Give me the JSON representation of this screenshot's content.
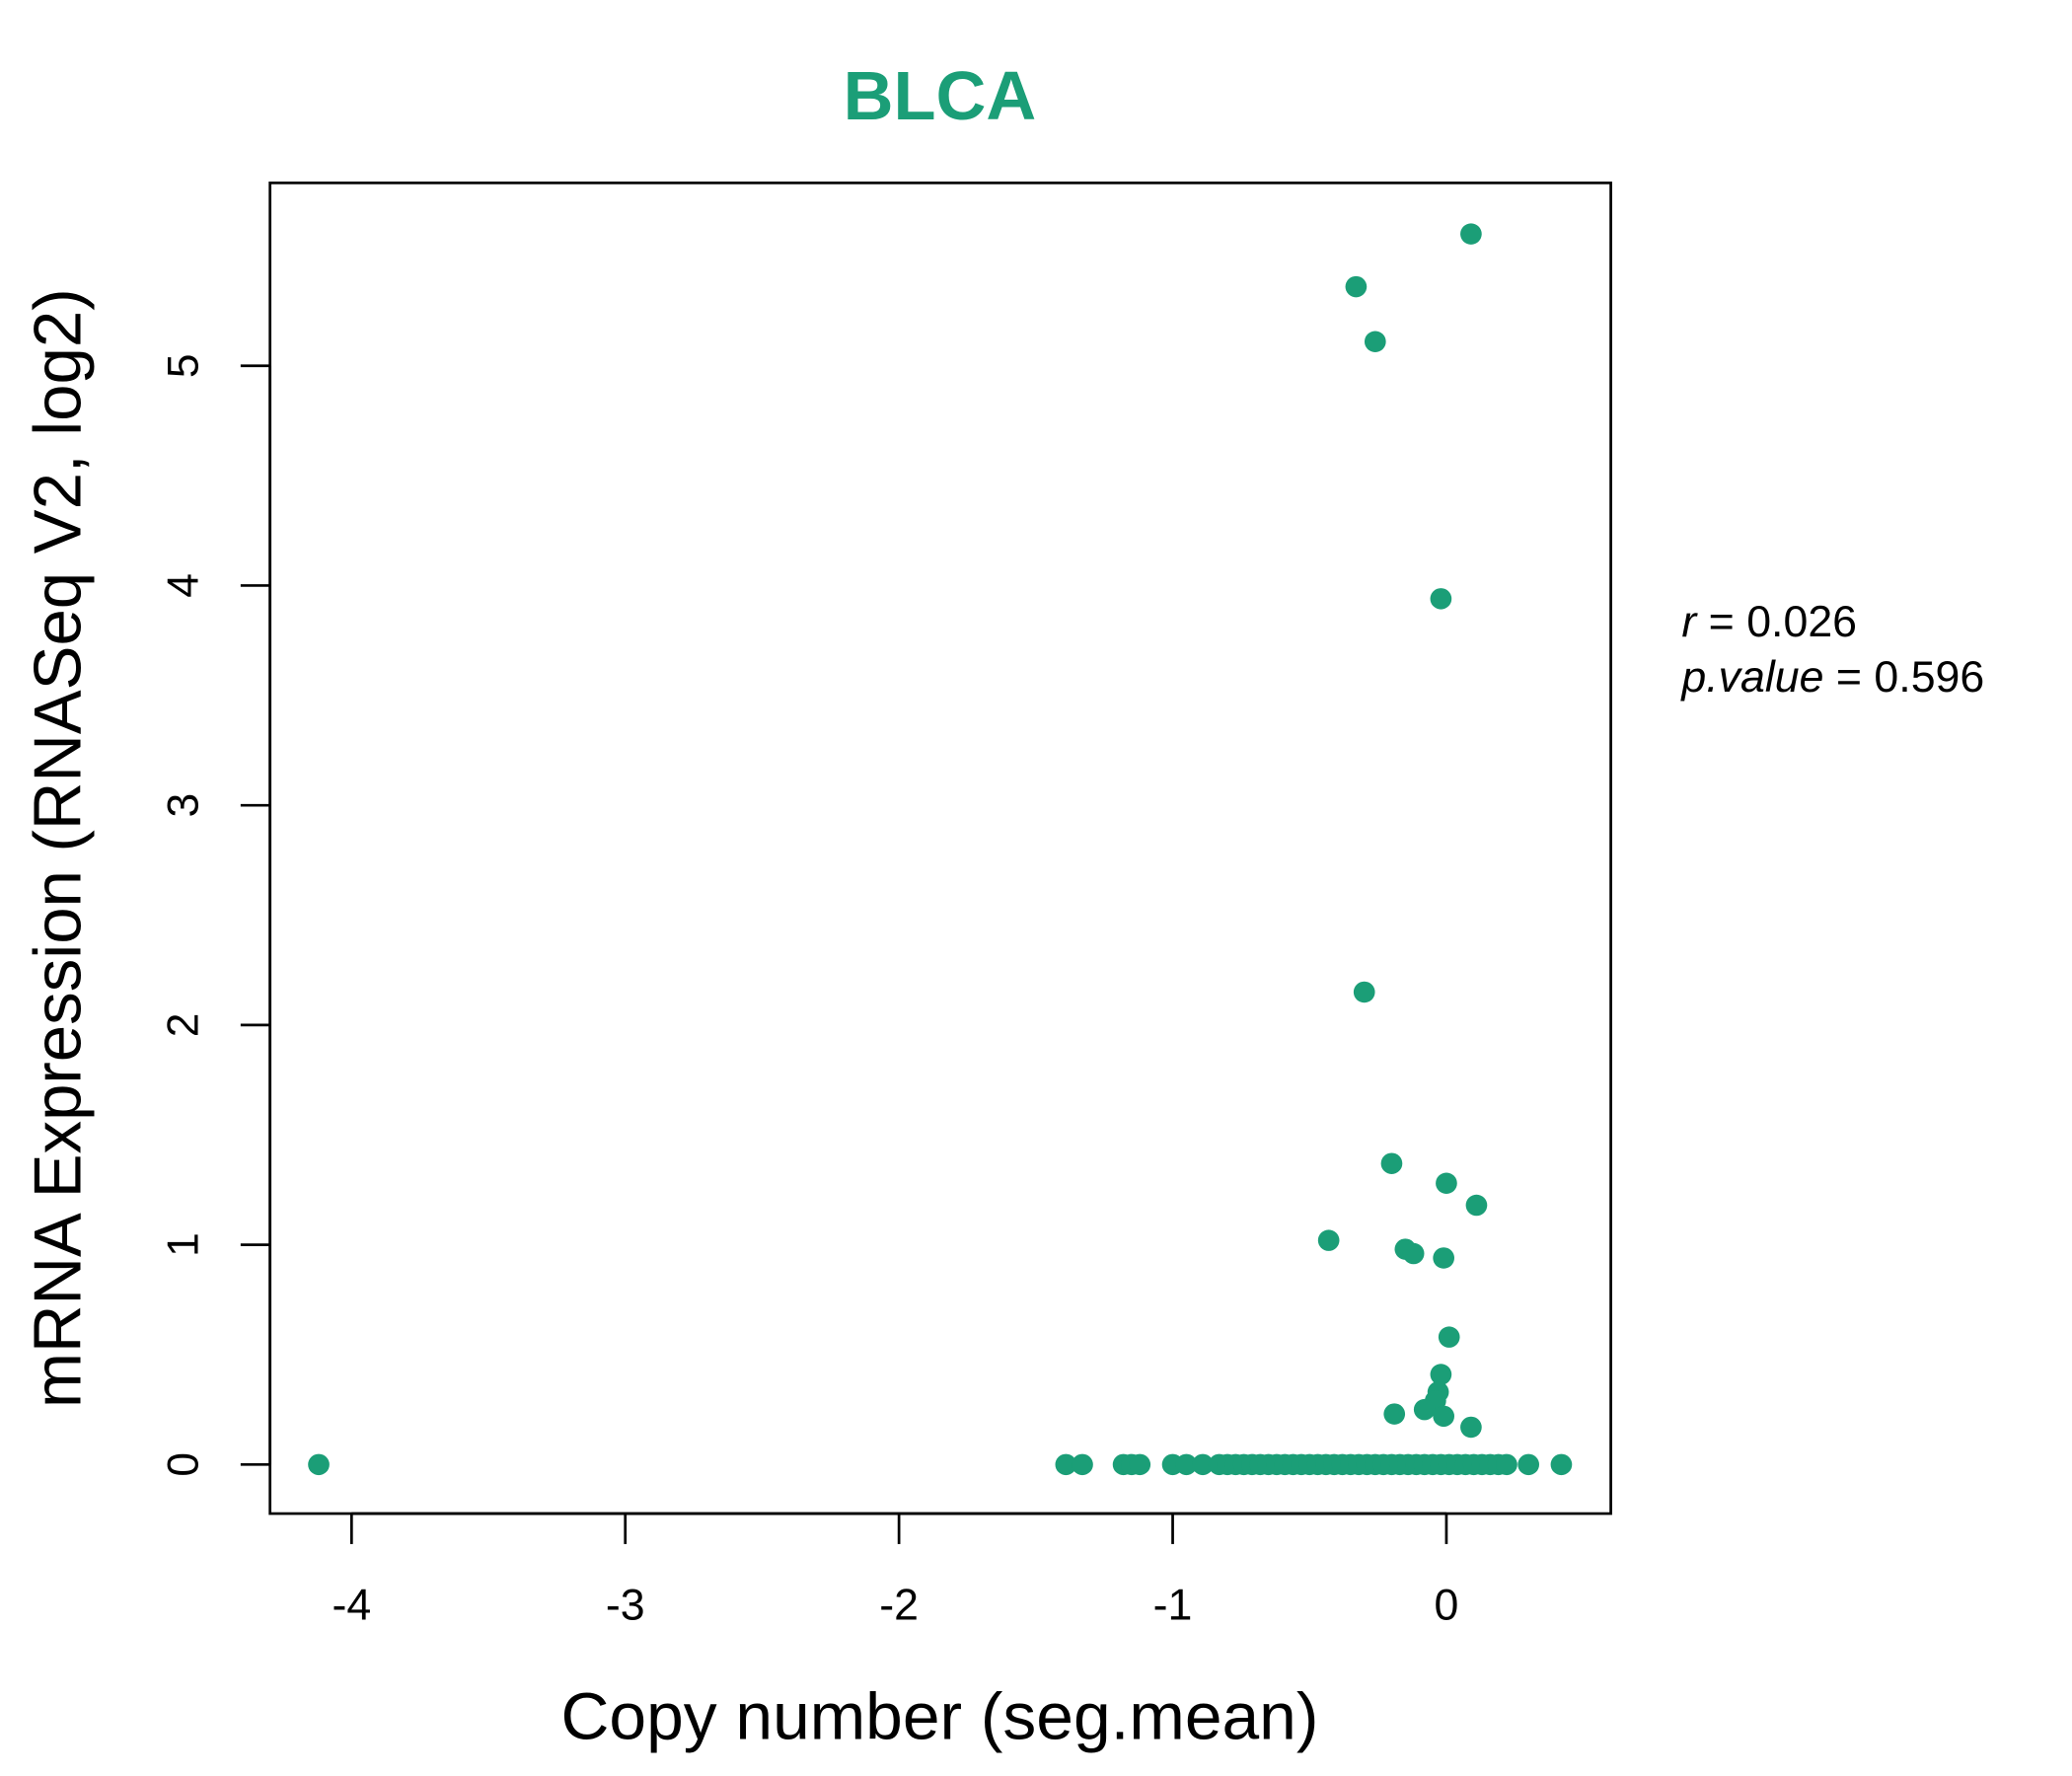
{
  "chart_data": {
    "type": "scatter",
    "title": "BLCA",
    "xlabel": "Copy number (seg.mean)",
    "ylabel": "mRNA Expression (RNASeq V2, log2)",
    "xlim": [
      -4.3,
      0.6
    ],
    "ylim": [
      -0.22,
      5.83
    ],
    "xticks": [
      -4,
      -3,
      -2,
      -1,
      0
    ],
    "yticks": [
      0,
      1,
      2,
      3,
      4,
      5
    ],
    "grid": false,
    "color": "#1b9e77",
    "annotation": {
      "r_label": "r",
      "r_value": "0.026",
      "p_label": "p.value",
      "p_value": "0.596"
    },
    "points": [
      [
        -4.12,
        0
      ],
      [
        -1.39,
        0
      ],
      [
        -1.33,
        0
      ],
      [
        -1.18,
        0
      ],
      [
        -1.15,
        0
      ],
      [
        -1.12,
        0
      ],
      [
        -1.0,
        0
      ],
      [
        -0.95,
        0
      ],
      [
        -0.89,
        0
      ],
      [
        -0.83,
        0
      ],
      [
        -0.8,
        0
      ],
      [
        -0.77,
        0
      ],
      [
        -0.74,
        0
      ],
      [
        -0.71,
        0
      ],
      [
        -0.68,
        0
      ],
      [
        -0.65,
        0
      ],
      [
        -0.62,
        0
      ],
      [
        -0.59,
        0
      ],
      [
        -0.56,
        0
      ],
      [
        -0.53,
        0
      ],
      [
        -0.5,
        0
      ],
      [
        -0.47,
        0
      ],
      [
        -0.44,
        0
      ],
      [
        -0.41,
        0
      ],
      [
        -0.38,
        0
      ],
      [
        -0.35,
        0
      ],
      [
        -0.32,
        0
      ],
      [
        -0.29,
        0
      ],
      [
        -0.26,
        0
      ],
      [
        -0.23,
        0
      ],
      [
        -0.2,
        0
      ],
      [
        -0.17,
        0
      ],
      [
        -0.14,
        0
      ],
      [
        -0.11,
        0
      ],
      [
        -0.08,
        0
      ],
      [
        -0.05,
        0
      ],
      [
        -0.02,
        0
      ],
      [
        0.01,
        0
      ],
      [
        0.04,
        0
      ],
      [
        0.07,
        0
      ],
      [
        0.1,
        0
      ],
      [
        0.13,
        0
      ],
      [
        0.16,
        0
      ],
      [
        0.19,
        0
      ],
      [
        0.22,
        0
      ],
      [
        0.3,
        0
      ],
      [
        0.42,
        0
      ],
      [
        0.09,
        5.6
      ],
      [
        -0.33,
        5.36
      ],
      [
        -0.26,
        5.11
      ],
      [
        -0.02,
        3.94
      ],
      [
        -0.3,
        2.15
      ],
      [
        -0.2,
        1.37
      ],
      [
        0.0,
        1.28
      ],
      [
        0.11,
        1.18
      ],
      [
        -0.43,
        1.02
      ],
      [
        -0.15,
        0.98
      ],
      [
        -0.12,
        0.96
      ],
      [
        -0.01,
        0.94
      ],
      [
        0.01,
        0.58
      ],
      [
        -0.02,
        0.41
      ],
      [
        -0.03,
        0.33
      ],
      [
        -0.04,
        0.29
      ],
      [
        -0.19,
        0.23
      ],
      [
        -0.08,
        0.25
      ],
      [
        -0.01,
        0.22
      ],
      [
        0.09,
        0.17
      ]
    ]
  }
}
